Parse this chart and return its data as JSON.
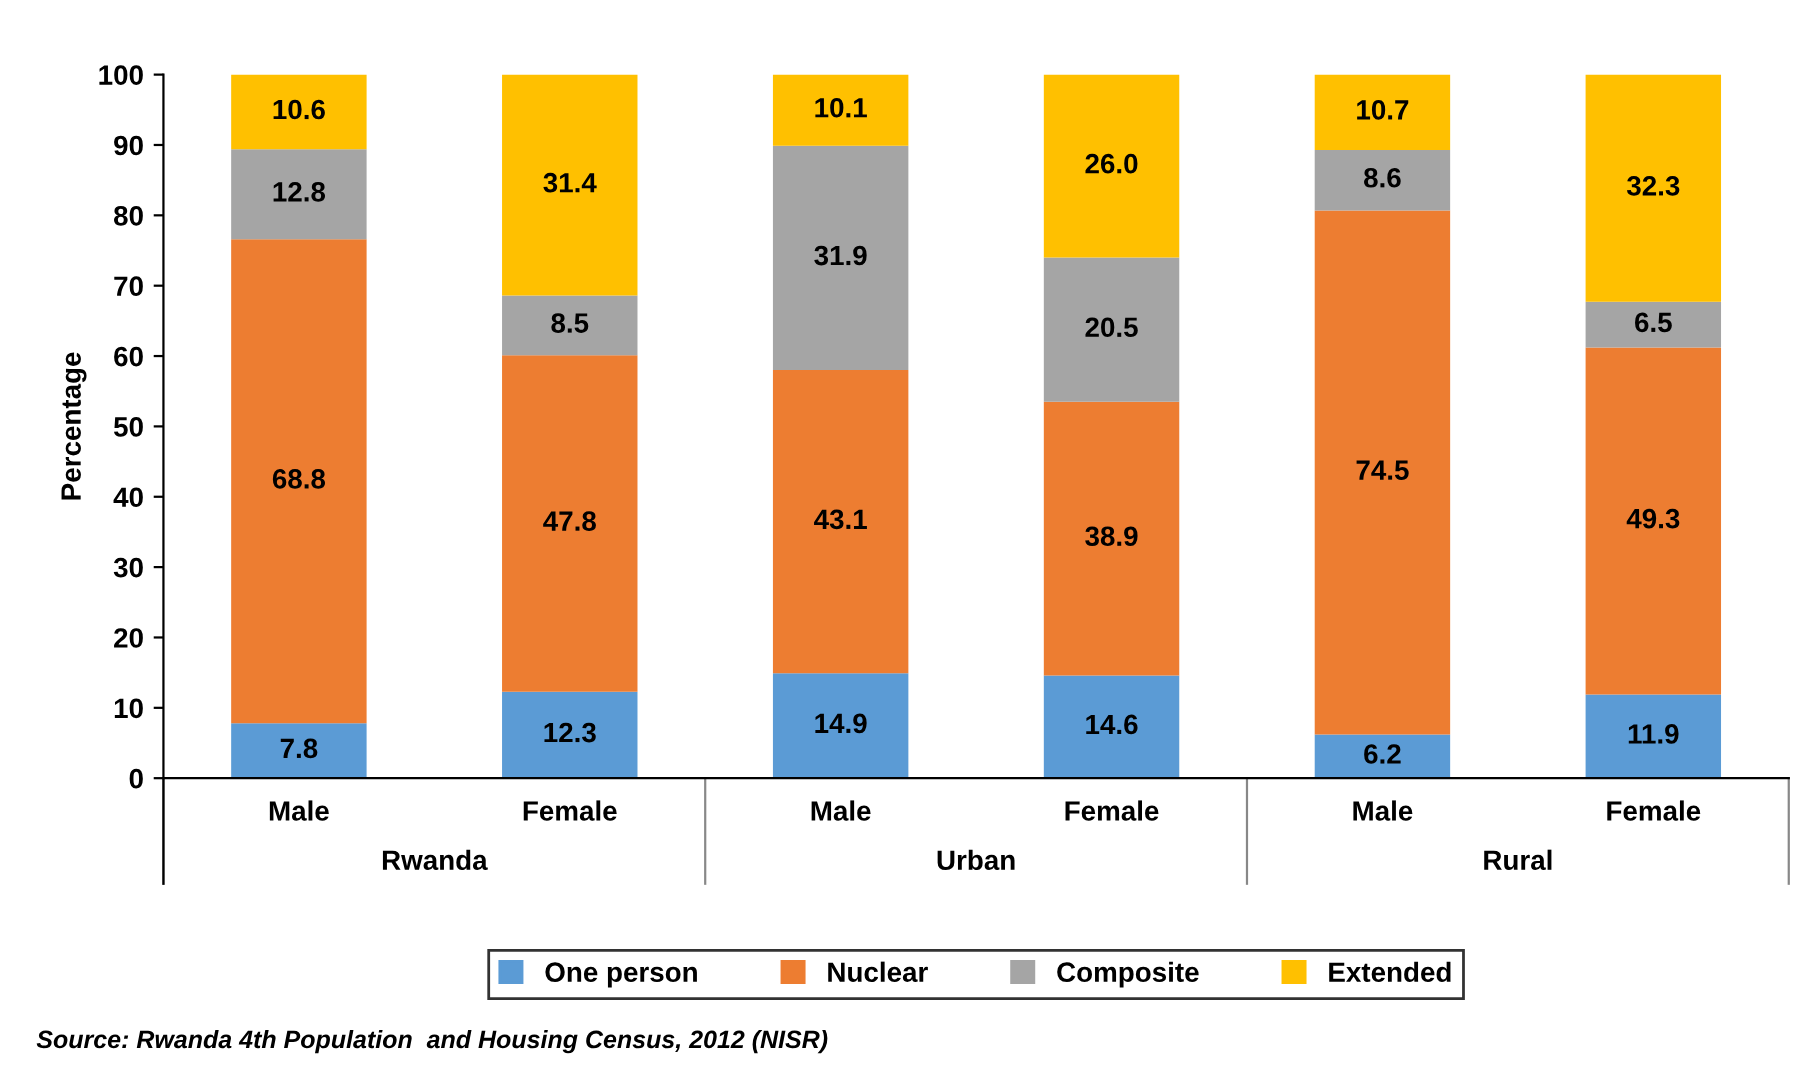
{
  "chart_data": {
    "type": "bar",
    "stacked": true,
    "ylabel": "Percentage",
    "categories": [
      "Male",
      "Female",
      "Male",
      "Female",
      "Male",
      "Female"
    ],
    "series": [
      {
        "name": "One person",
        "color": "#5b9bd5",
        "values": [
          7.8,
          12.3,
          14.9,
          14.6,
          6.2,
          11.9
        ],
        "value_labels": [
          "7.8",
          "12.3",
          "14.9",
          "14.6",
          "6.2",
          "11.9"
        ]
      },
      {
        "name": "Nuclear",
        "color": "#ed7d31",
        "values": [
          68.8,
          47.8,
          43.1,
          38.9,
          74.5,
          49.3
        ],
        "value_labels": [
          "68.8",
          "47.8",
          "43.1",
          "38.9",
          "74.5",
          "49.3"
        ]
      },
      {
        "name": "Composite",
        "color": "#a5a5a5",
        "values": [
          12.8,
          8.5,
          31.9,
          20.5,
          8.6,
          6.5
        ],
        "value_labels": [
          "12.8",
          "8.5",
          "31.9",
          "20.5",
          "8.6",
          "6.5"
        ]
      },
      {
        "name": "Extended",
        "color": "#ffc000",
        "values": [
          10.6,
          31.4,
          10.1,
          26.0,
          10.7,
          32.3
        ],
        "value_labels": [
          "10.6",
          "31.4",
          "10.1",
          "26.0",
          "10.7",
          "32.3"
        ]
      }
    ],
    "ylim": [
      0,
      100
    ],
    "yticks": [
      0,
      10,
      20,
      30,
      40,
      50,
      60,
      70,
      80,
      90,
      100
    ],
    "grid": false,
    "legend": "bottom",
    "annotations": [
      "Rwanda",
      "Urban",
      "Rural",
      "Source: Rwanda 4th Population  and Housing Census, 2012 (NISR)"
    ]
  }
}
